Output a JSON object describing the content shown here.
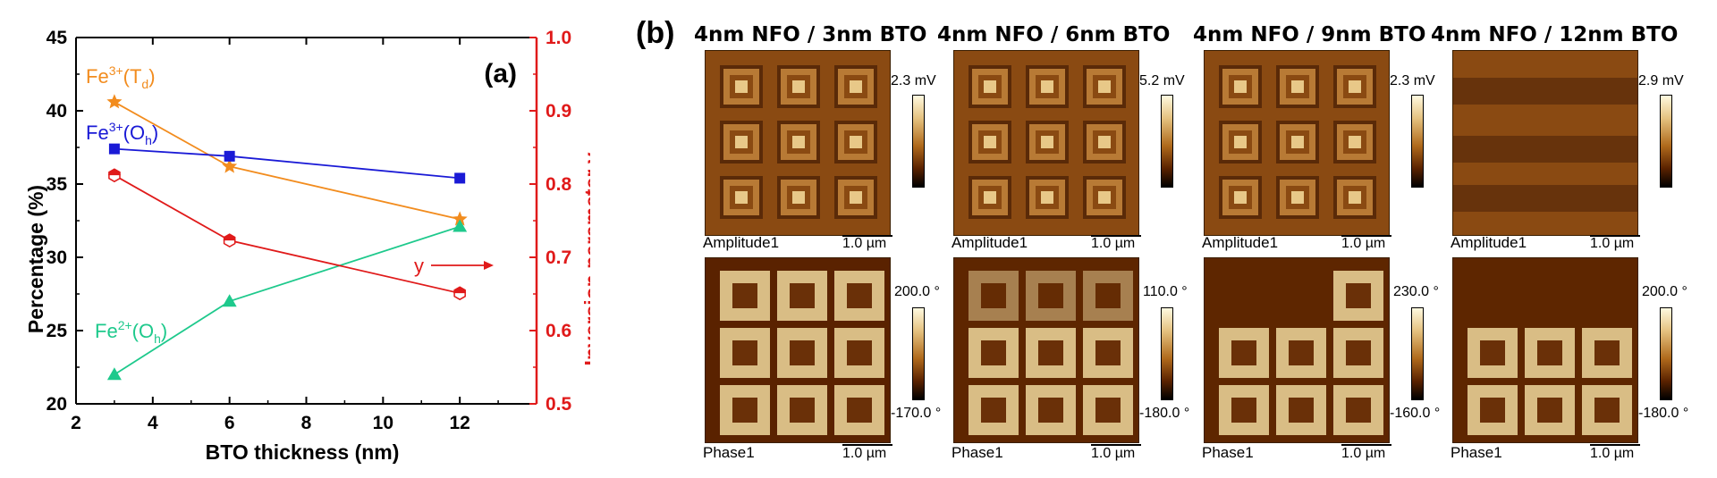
{
  "chart_data": {
    "type": "line",
    "panel_label": "(a)",
    "xlabel": "BTO thickness (nm)",
    "ylabel": "Percentage (%)",
    "y2label": "Inversion parameter y",
    "xlim": [
      2,
      14
    ],
    "ylim": [
      20,
      45
    ],
    "y2lim": [
      0.5,
      1.0
    ],
    "xticks": [
      "2",
      "4",
      "6",
      "8",
      "10",
      "12"
    ],
    "yticks": [
      "20",
      "25",
      "30",
      "35",
      "40",
      "45"
    ],
    "y2ticks": [
      "0.5",
      "0.6",
      "0.7",
      "0.8",
      "0.9",
      "1.0"
    ],
    "series": [
      {
        "name": "Fe3+(Td)",
        "label_main": "Fe",
        "label_sup": "3+",
        "label_paren": "(T",
        "label_sub": "d",
        "label_close": ")",
        "color": "#f28c1e",
        "marker": "star",
        "axis": "left",
        "x": [
          3,
          6,
          12
        ],
        "y": [
          40.6,
          36.2,
          32.6
        ]
      },
      {
        "name": "Fe3+(Oh)",
        "label_main": "Fe",
        "label_sup": "3+",
        "label_paren": "(O",
        "label_sub": "h",
        "label_close": ")",
        "color": "#1a1ad6",
        "marker": "square",
        "axis": "left",
        "x": [
          3,
          6,
          12
        ],
        "y": [
          37.4,
          36.9,
          35.4
        ]
      },
      {
        "name": "Fe2+(Oh)",
        "label_main": "Fe",
        "label_sup": "2+",
        "label_paren": "(O",
        "label_sub": "h",
        "label_close": ")",
        "color": "#1ec98c",
        "marker": "triangle",
        "axis": "left",
        "x": [
          3,
          6,
          12
        ],
        "y": [
          22.0,
          27.0,
          32.1
        ]
      },
      {
        "name": "y",
        "label_main": "y",
        "color": "#e01a1a",
        "marker": "hexagon",
        "axis": "right",
        "x": [
          3,
          6,
          12
        ],
        "y": [
          0.812,
          0.723,
          0.651
        ]
      }
    ]
  },
  "panel_b": {
    "panel_label": "(b)",
    "amplitude_label": "Amplitude1",
    "phase_label": "Phase1",
    "scale_bar": "1.0 µm",
    "samples": [
      {
        "title": "4nm NFO / 3nm BTO",
        "amp_max": "2.3 mV",
        "phase_max": "200.0 °",
        "phase_min": "-170.0 °"
      },
      {
        "title": "4nm NFO / 6nm BTO",
        "amp_max": "5.2 mV",
        "phase_max": "110.0 °",
        "phase_min": "-180.0 °"
      },
      {
        "title": "4nm NFO / 9nm BTO",
        "amp_max": "2.3 mV",
        "phase_max": "230.0 °",
        "phase_min": "-160.0 °"
      },
      {
        "title": "4nm NFO / 12nm BTO",
        "amp_max": "2.9 mV",
        "phase_max": "200.0 °",
        "phase_min": "-180.0 °"
      }
    ]
  }
}
